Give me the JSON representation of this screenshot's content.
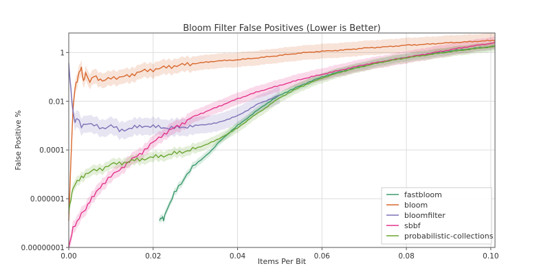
{
  "chart_data": {
    "type": "line",
    "title": "Bloom Filter False Positives (Lower is Better)",
    "xlabel": "Items Per Bit",
    "ylabel": "False Positive %",
    "xlim": [
      0.0,
      0.101
    ],
    "ylim_log10": [
      -8,
      0.8
    ],
    "yscale": "log",
    "grid": true,
    "legend_position": "bottom-right",
    "xticks": [
      {
        "value": 0.0,
        "label": "0.00"
      },
      {
        "value": 0.02,
        "label": "0.02"
      },
      {
        "value": 0.04,
        "label": "0.04"
      },
      {
        "value": 0.06,
        "label": "0.06"
      },
      {
        "value": 0.08,
        "label": "0.08"
      },
      {
        "value": 0.1,
        "label": "0.10"
      }
    ],
    "yticks": [
      {
        "log10": 0,
        "label": "1"
      },
      {
        "log10": -2,
        "label": "0.01"
      },
      {
        "log10": -4,
        "label": "0.0001"
      },
      {
        "log10": -6,
        "label": "0.000001"
      },
      {
        "log10": -8,
        "label": "0.00000001"
      }
    ],
    "series": [
      {
        "name": "fastbloom",
        "color": "#3a9a6c",
        "band": 0.15,
        "x": [
          0.0215,
          0.022,
          0.0225,
          0.023,
          0.024,
          0.025,
          0.026,
          0.028,
          0.03,
          0.032,
          0.034,
          0.036,
          0.038,
          0.04,
          0.043,
          0.046,
          0.05,
          0.055,
          0.06,
          0.065,
          0.07,
          0.075,
          0.08,
          0.085,
          0.09,
          0.095,
          0.101
        ],
        "log10y": [
          -6.9,
          -6.8,
          -6.85,
          -6.5,
          -6.2,
          -5.8,
          -5.5,
          -5.0,
          -4.6,
          -4.3,
          -4.0,
          -3.6,
          -3.3,
          -3.0,
          -2.6,
          -2.2,
          -1.75,
          -1.35,
          -1.0,
          -0.75,
          -0.55,
          -0.35,
          -0.2,
          -0.08,
          0.05,
          0.15,
          0.26
        ]
      },
      {
        "name": "bloom",
        "color": "#d8662a",
        "band": 0.3,
        "x": [
          0.0,
          0.0005,
          0.001,
          0.0015,
          0.002,
          0.0025,
          0.003,
          0.0035,
          0.004,
          0.005,
          0.006,
          0.007,
          0.008,
          0.01,
          0.012,
          0.015,
          0.018,
          0.02,
          0.025,
          0.03,
          0.035,
          0.04,
          0.045,
          0.05,
          0.055,
          0.06,
          0.065,
          0.07,
          0.075,
          0.08,
          0.085,
          0.09,
          0.095,
          0.101
        ],
        "log10y": [
          -7.0,
          -4.5,
          -2.3,
          -1.4,
          -1.2,
          -0.8,
          -0.6,
          -1.2,
          -0.9,
          -1.2,
          -0.9,
          -1.1,
          -1.2,
          -1.0,
          -1.05,
          -0.9,
          -0.75,
          -0.7,
          -0.55,
          -0.45,
          -0.35,
          -0.3,
          -0.22,
          -0.12,
          -0.02,
          0.05,
          0.1,
          0.18,
          0.23,
          0.3,
          0.34,
          0.4,
          0.44,
          0.5
        ]
      },
      {
        "name": "bloomfilter",
        "color": "#7c70b6",
        "band": 0.35,
        "x": [
          0.0,
          0.0005,
          0.001,
          0.0015,
          0.002,
          0.003,
          0.004,
          0.006,
          0.008,
          0.01,
          0.012,
          0.015,
          0.018,
          0.02,
          0.025,
          0.03,
          0.035,
          0.04,
          0.045,
          0.05
        ],
        "log10y": [
          -0.5,
          -1.5,
          -2.4,
          -2.9,
          -2.7,
          -3.0,
          -2.9,
          -3.0,
          -3.1,
          -3.0,
          -3.2,
          -3.1,
          -3.0,
          -3.05,
          -3.1,
          -3.0,
          -2.9,
          -2.6,
          -2.1,
          -1.75
        ]
      },
      {
        "name": "sbbf",
        "color": "#e3348c",
        "band": 0.25,
        "x": [
          0.0,
          0.0005,
          0.001,
          0.002,
          0.003,
          0.004,
          0.005,
          0.006,
          0.007,
          0.008,
          0.01,
          0.012,
          0.015,
          0.018,
          0.02,
          0.022,
          0.025,
          0.03,
          0.035,
          0.04,
          0.045,
          0.05,
          0.055,
          0.06,
          0.065,
          0.07,
          0.075,
          0.08,
          0.085,
          0.09,
          0.095,
          0.101
        ],
        "log10y": [
          -8.0,
          -7.6,
          -7.2,
          -7.0,
          -6.6,
          -6.4,
          -6.1,
          -5.9,
          -5.6,
          -5.4,
          -5.1,
          -4.8,
          -4.4,
          -4.0,
          -3.7,
          -3.4,
          -3.1,
          -2.6,
          -2.25,
          -1.9,
          -1.6,
          -1.35,
          -1.1,
          -0.9,
          -0.7,
          -0.5,
          -0.35,
          -0.2,
          -0.05,
          0.1,
          0.25,
          0.4
        ]
      },
      {
        "name": "probabilistic-collections",
        "color": "#6aa531",
        "band": 0.2,
        "x": [
          0.0,
          0.0005,
          0.001,
          0.002,
          0.003,
          0.004,
          0.006,
          0.008,
          0.01,
          0.012,
          0.015,
          0.018,
          0.02,
          0.025,
          0.03,
          0.035,
          0.04,
          0.043,
          0.046,
          0.05,
          0.055,
          0.06,
          0.065,
          0.07,
          0.075,
          0.08,
          0.085,
          0.09,
          0.095,
          0.101
        ],
        "log10y": [
          -6.5,
          -6.0,
          -5.6,
          -5.3,
          -5.1,
          -5.0,
          -4.85,
          -4.75,
          -4.6,
          -4.55,
          -4.45,
          -4.35,
          -4.3,
          -4.15,
          -3.95,
          -3.6,
          -3.1,
          -2.7,
          -2.35,
          -1.85,
          -1.4,
          -1.05,
          -0.78,
          -0.56,
          -0.37,
          -0.22,
          -0.1,
          0.02,
          0.13,
          0.25
        ]
      }
    ]
  }
}
